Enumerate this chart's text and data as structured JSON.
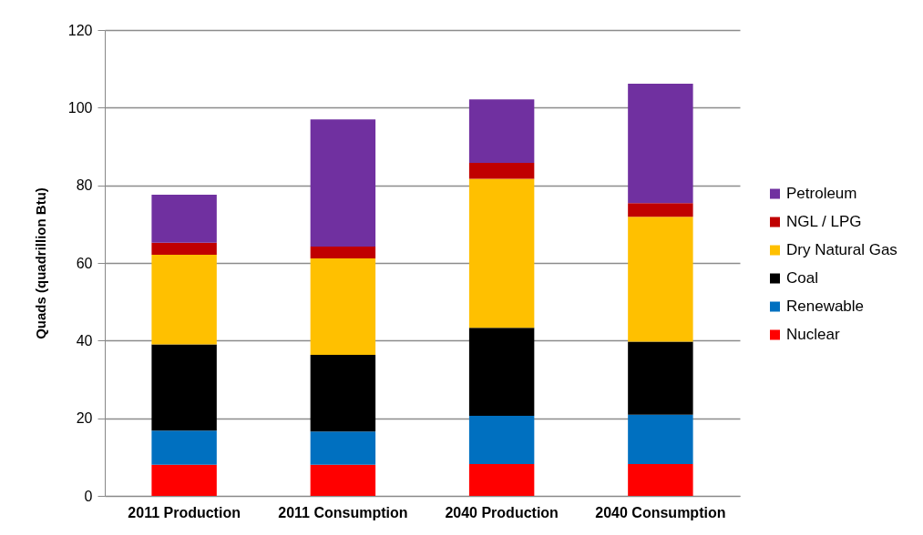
{
  "chart_data": {
    "type": "bar",
    "stacked": true,
    "categories": [
      "2011 Production",
      "2011 Consumption",
      "2040 Production",
      "2040 Consumption"
    ],
    "ylabel": "Quads (quadrillion Btu)",
    "ylim": [
      0,
      120
    ],
    "yticks": [
      0,
      20,
      40,
      60,
      80,
      100,
      120
    ],
    "grid": "y",
    "legend": "right",
    "series": [
      {
        "name": "Nuclear",
        "color": "#ff0000",
        "values": [
          8.0,
          8.0,
          8.2,
          8.2
        ]
      },
      {
        "name": "Renewable",
        "color": "#0070c0",
        "values": [
          8.8,
          8.6,
          12.4,
          12.7
        ]
      },
      {
        "name": "Coal",
        "color": "#000000",
        "values": [
          22.2,
          19.7,
          22.7,
          18.8
        ]
      },
      {
        "name": "Dry Natural Gas",
        "color": "#ffc000",
        "values": [
          23.1,
          24.9,
          38.4,
          32.2
        ]
      },
      {
        "name": "NGL / LPG",
        "color": "#c00000",
        "values": [
          3.1,
          3.0,
          4.1,
          3.5
        ]
      },
      {
        "name": "Petroleum",
        "color": "#7030a0",
        "values": [
          12.4,
          32.8,
          16.3,
          30.8
        ]
      }
    ]
  }
}
